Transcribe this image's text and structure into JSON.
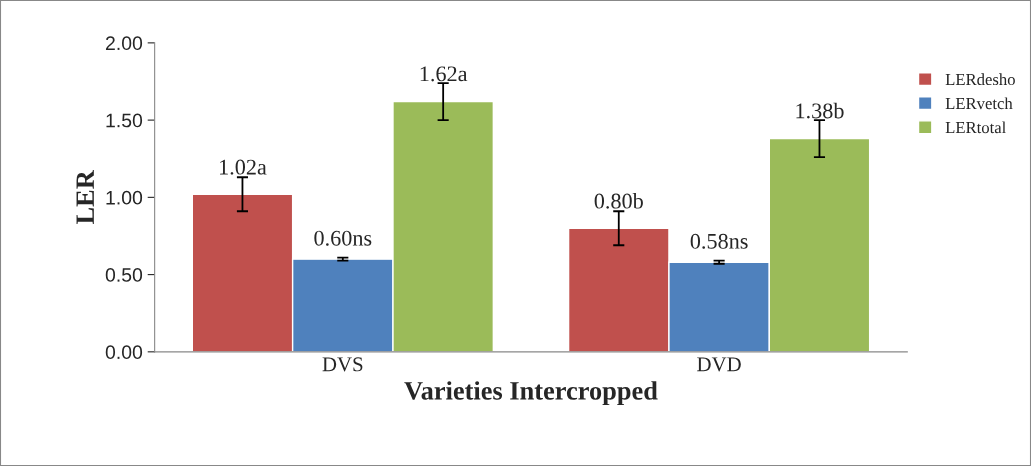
{
  "chart_data": {
    "type": "bar",
    "xlabel": "Varieties Intercropped",
    "ylabel": "LER",
    "categories": [
      "DVS",
      "DVD"
    ],
    "series": [
      {
        "name": "LERdesho",
        "color": "#c0504d",
        "values": [
          1.02,
          0.8
        ],
        "errors": [
          0.11,
          0.11
        ],
        "value_labels": [
          "1.02a",
          "0.80b"
        ]
      },
      {
        "name": "LERvetch",
        "color": "#4f81bd",
        "values": [
          0.6,
          0.58
        ],
        "errors": [
          0.01,
          0.01
        ],
        "value_labels": [
          "0.60ns",
          "0.58ns"
        ]
      },
      {
        "name": "LERtotal",
        "color": "#9bbb59",
        "values": [
          1.62,
          1.38
        ],
        "errors": [
          0.12,
          0.12
        ],
        "value_labels": [
          "1.62a",
          "1.38b"
        ]
      }
    ],
    "ylim": [
      0,
      2
    ],
    "yticks": [
      {
        "value": 0,
        "label": "0.00"
      },
      {
        "value": 0.5,
        "label": "0.50"
      },
      {
        "value": 1,
        "label": "1.00"
      },
      {
        "value": 1.5,
        "label": "1.50"
      },
      {
        "value": 2,
        "label": "2.00"
      }
    ],
    "grid": false,
    "legend": "right"
  }
}
